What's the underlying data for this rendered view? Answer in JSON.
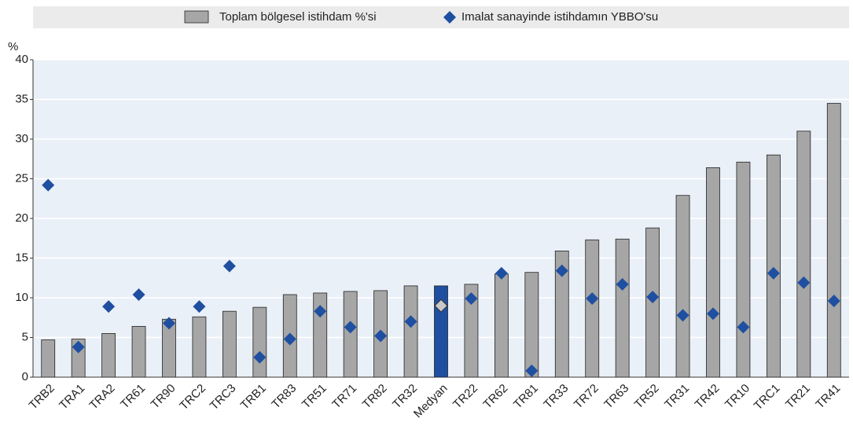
{
  "chart_data": {
    "type": "bar",
    "ylabel": "%",
    "categories": [
      "TRB2",
      "TRA1",
      "TRA2",
      "TR61",
      "TR90",
      "TRC2",
      "TRC3",
      "TRB1",
      "TR83",
      "TR51",
      "TR71",
      "TR82",
      "TR32",
      "Medyan",
      "TR22",
      "TR62",
      "TR81",
      "TR33",
      "TR72",
      "TR63",
      "TR52",
      "TR31",
      "TR42",
      "TR10",
      "TRC1",
      "TR21",
      "TR41"
    ],
    "series": [
      {
        "name": "Toplam bölgesel istihdam %'si",
        "type": "bar",
        "color": "#a6a6a6",
        "highlight_color": "#1f4fa0",
        "values": [
          4.7,
          4.8,
          5.5,
          6.4,
          7.3,
          7.6,
          8.3,
          8.8,
          10.4,
          10.6,
          10.8,
          10.9,
          11.5,
          11.5,
          11.7,
          13.0,
          13.2,
          15.9,
          17.3,
          17.4,
          18.8,
          22.9,
          26.4,
          27.1,
          28.0,
          31.0,
          34.5
        ]
      },
      {
        "name": "Imalat sanayinde istihdamın YBBO'su",
        "type": "scatter",
        "color": "#1f4fa0",
        "highlight_color": "#c8c8c8",
        "values": [
          24.2,
          3.8,
          8.9,
          10.4,
          6.8,
          8.9,
          14.0,
          2.5,
          4.8,
          8.3,
          6.3,
          5.2,
          7.0,
          9.0,
          9.9,
          13.1,
          0.8,
          13.4,
          9.9,
          11.7,
          10.1,
          7.8,
          8.0,
          6.3,
          13.1,
          11.9,
          9.6
        ]
      }
    ],
    "highlight": 13,
    "ylim": [
      0,
      40
    ],
    "yticks": [
      0,
      5,
      10,
      15,
      20,
      25,
      30,
      35,
      40
    ],
    "grid": true
  }
}
